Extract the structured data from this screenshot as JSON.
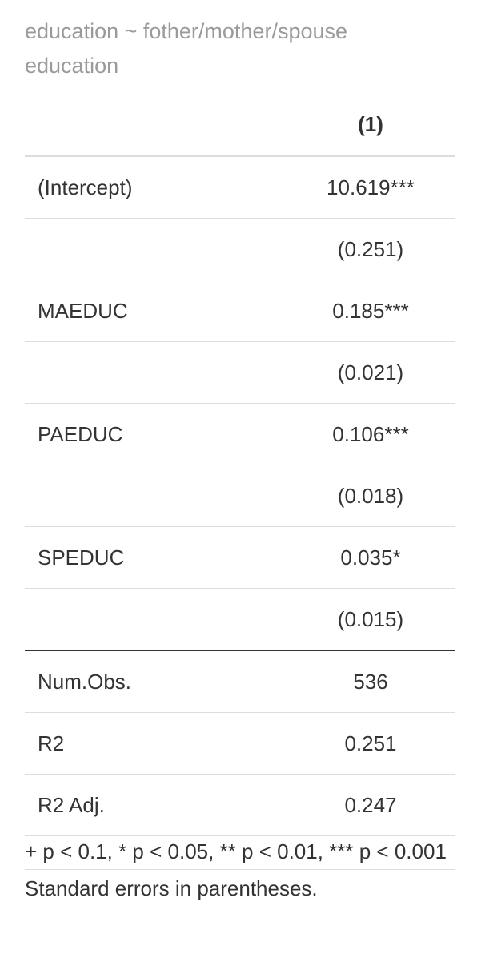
{
  "caption": "education ~ fother/mother/spouse education",
  "table": {
    "header": {
      "label": "",
      "model": "(1)"
    },
    "rows": [
      {
        "label": "(Intercept)",
        "value": "10.619***"
      },
      {
        "label": "",
        "value": "(0.251)"
      },
      {
        "label": "MAEDUC",
        "value": "0.185***"
      },
      {
        "label": "",
        "value": "(0.021)"
      },
      {
        "label": "PAEDUC",
        "value": "0.106***"
      },
      {
        "label": "",
        "value": "(0.018)"
      },
      {
        "label": "SPEDUC",
        "value": "0.035*"
      },
      {
        "label": "",
        "value": "(0.015)"
      }
    ],
    "gof": [
      {
        "label": "Num.Obs.",
        "value": "536"
      },
      {
        "label": "R2",
        "value": "0.251"
      },
      {
        "label": "R2 Adj.",
        "value": "0.247"
      }
    ]
  },
  "footnotes": {
    "significance": "+ p < 0.1, * p < 0.05, ** p < 0.01, *** p < 0.001",
    "se_note": "Standard errors in parentheses."
  }
}
